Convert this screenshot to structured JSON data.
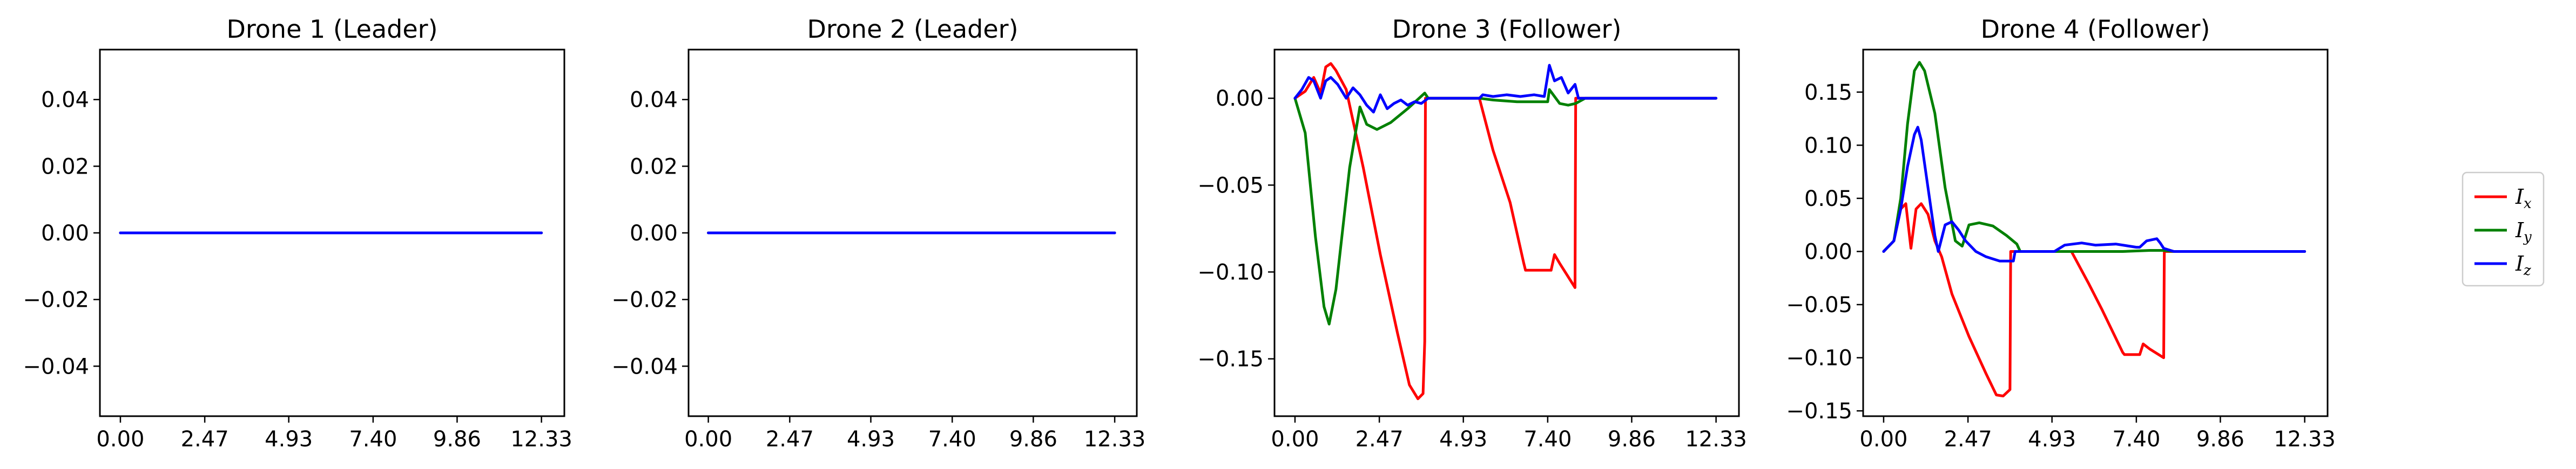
{
  "chart_data": [
    {
      "type": "line",
      "title": "Drone 1 (Leader)",
      "xlim": [
        -0.6,
        13.0
      ],
      "ylim": [
        -0.055,
        0.055
      ],
      "xticks": [
        "0.00",
        "2.47",
        "4.93",
        "7.40",
        "9.86",
        "12.33"
      ],
      "xtick_values": [
        0.0,
        2.47,
        4.93,
        7.4,
        9.86,
        12.33
      ],
      "yticks": [
        "−0.04",
        "−0.02",
        "0.00",
        "0.02",
        "0.04"
      ],
      "ytick_values": [
        -0.04,
        -0.02,
        0.0,
        0.02,
        0.04
      ],
      "series": [
        {
          "name": "I_x",
          "color": "#ff0000",
          "x": [
            0.0,
            12.33
          ],
          "y": [
            0.0,
            0.0
          ]
        },
        {
          "name": "I_y",
          "color": "#008000",
          "x": [
            0.0,
            12.33
          ],
          "y": [
            0.0,
            0.0
          ]
        },
        {
          "name": "I_z",
          "color": "#0000ff",
          "x": [
            0.0,
            12.33
          ],
          "y": [
            0.0,
            0.0
          ]
        }
      ]
    },
    {
      "type": "line",
      "title": "Drone 2 (Leader)",
      "xlim": [
        -0.6,
        13.0
      ],
      "ylim": [
        -0.055,
        0.055
      ],
      "xticks": [
        "0.00",
        "2.47",
        "4.93",
        "7.40",
        "9.86",
        "12.33"
      ],
      "xtick_values": [
        0.0,
        2.47,
        4.93,
        7.4,
        9.86,
        12.33
      ],
      "yticks": [
        "−0.04",
        "−0.02",
        "0.00",
        "0.02",
        "0.04"
      ],
      "ytick_values": [
        -0.04,
        -0.02,
        0.0,
        0.02,
        0.04
      ],
      "series": [
        {
          "name": "I_x",
          "color": "#ff0000",
          "x": [
            0.0,
            12.33
          ],
          "y": [
            0.0,
            0.0
          ]
        },
        {
          "name": "I_y",
          "color": "#008000",
          "x": [
            0.0,
            12.33
          ],
          "y": [
            0.0,
            0.0
          ]
        },
        {
          "name": "I_z",
          "color": "#0000ff",
          "x": [
            0.0,
            12.33
          ],
          "y": [
            0.0,
            0.0
          ]
        }
      ]
    },
    {
      "type": "line",
      "title": "Drone 3 (Follower)",
      "xlim": [
        -0.6,
        13.0
      ],
      "ylim": [
        -0.183,
        0.028
      ],
      "xticks": [
        "0.00",
        "2.47",
        "4.93",
        "7.40",
        "9.86",
        "12.33"
      ],
      "xtick_values": [
        0.0,
        2.47,
        4.93,
        7.4,
        9.86,
        12.33
      ],
      "yticks": [
        "0.00",
        "−0.05",
        "−0.10",
        "−0.15"
      ],
      "ytick_values": [
        0.0,
        -0.05,
        -0.1,
        -0.15
      ],
      "series": [
        {
          "name": "I_x",
          "color": "#ff0000",
          "x": [
            0.0,
            0.3,
            0.55,
            0.75,
            0.9,
            1.05,
            1.2,
            1.5,
            2.0,
            2.5,
            3.0,
            3.35,
            3.6,
            3.75,
            3.8,
            3.82,
            3.9,
            4.2,
            4.9,
            5.4,
            5.8,
            6.3,
            6.7,
            6.75,
            7.1,
            7.5,
            7.6,
            7.75,
            8.2,
            8.22,
            8.5,
            12.33
          ],
          "y": [
            0.0,
            0.004,
            0.012,
            0.003,
            0.018,
            0.02,
            0.016,
            0.005,
            -0.04,
            -0.09,
            -0.135,
            -0.165,
            -0.173,
            -0.17,
            -0.14,
            0.0,
            0.0,
            0.0,
            0.0,
            0.0,
            -0.03,
            -0.06,
            -0.095,
            -0.099,
            -0.099,
            -0.099,
            -0.09,
            -0.095,
            -0.109,
            0.0,
            0.0,
            0.0
          ]
        },
        {
          "name": "I_y",
          "color": "#008000",
          "x": [
            0.0,
            0.3,
            0.6,
            0.85,
            1.0,
            1.2,
            1.6,
            1.9,
            2.1,
            2.4,
            2.8,
            3.3,
            3.8,
            3.9,
            4.6,
            5.0,
            5.4,
            5.8,
            6.5,
            7.0,
            7.4,
            7.45,
            7.75,
            8.0,
            8.22,
            8.5,
            12.33
          ],
          "y": [
            0.0,
            -0.02,
            -0.08,
            -0.12,
            -0.13,
            -0.11,
            -0.04,
            -0.005,
            -0.015,
            -0.018,
            -0.014,
            -0.006,
            0.003,
            0.0,
            0.0,
            0.0,
            0.0,
            -0.001,
            -0.002,
            -0.002,
            -0.002,
            0.005,
            -0.003,
            -0.004,
            -0.003,
            0.0,
            0.0
          ]
        },
        {
          "name": "I_z",
          "color": "#0000ff",
          "x": [
            0.0,
            0.2,
            0.4,
            0.55,
            0.75,
            0.9,
            1.05,
            1.25,
            1.5,
            1.7,
            1.9,
            2.1,
            2.3,
            2.5,
            2.7,
            2.9,
            3.1,
            3.3,
            3.5,
            3.7,
            3.9,
            4.4,
            4.9,
            5.4,
            5.5,
            5.8,
            6.2,
            6.6,
            7.0,
            7.3,
            7.45,
            7.6,
            7.8,
            8.0,
            8.2,
            8.3,
            8.6,
            12.33
          ],
          "y": [
            0.0,
            0.005,
            0.012,
            0.01,
            0.0,
            0.01,
            0.012,
            0.008,
            0.0,
            0.006,
            0.002,
            -0.004,
            -0.008,
            0.002,
            -0.006,
            -0.003,
            -0.001,
            -0.004,
            -0.002,
            -0.003,
            0.0,
            0.0,
            0.0,
            0.0,
            0.002,
            0.001,
            0.002,
            0.001,
            0.002,
            0.001,
            0.019,
            0.01,
            0.012,
            0.003,
            0.008,
            0.0,
            0.0,
            0.0
          ]
        }
      ]
    },
    {
      "type": "line",
      "title": "Drone 4 (Follower)",
      "xlim": [
        -0.6,
        13.0
      ],
      "ylim": [
        -0.155,
        0.19
      ],
      "xticks": [
        "0.00",
        "2.47",
        "4.93",
        "7.40",
        "9.86",
        "12.33"
      ],
      "xtick_values": [
        0.0,
        2.47,
        4.93,
        7.4,
        9.86,
        12.33
      ],
      "yticks": [
        "0.15",
        "0.10",
        "0.05",
        "0.00",
        "−0.05",
        "−0.10",
        "−0.15"
      ],
      "ytick_values": [
        0.15,
        0.1,
        0.05,
        0.0,
        -0.05,
        -0.1,
        -0.15
      ],
      "series": [
        {
          "name": "I_x",
          "color": "#ff0000",
          "x": [
            0.0,
            0.3,
            0.5,
            0.65,
            0.8,
            0.95,
            1.1,
            1.3,
            1.5,
            1.7,
            2.0,
            2.5,
            3.0,
            3.3,
            3.5,
            3.7,
            3.72,
            4.0,
            5.2,
            5.5,
            6.0,
            6.4,
            7.0,
            7.05,
            7.3,
            7.5,
            7.6,
            7.8,
            8.2,
            8.22,
            8.5,
            12.33
          ],
          "y": [
            0.0,
            0.01,
            0.04,
            0.045,
            0.003,
            0.04,
            0.045,
            0.035,
            0.01,
            -0.005,
            -0.04,
            -0.08,
            -0.115,
            -0.135,
            -0.136,
            -0.13,
            0.0,
            0.0,
            0.0,
            0.0,
            -0.03,
            -0.055,
            -0.095,
            -0.097,
            -0.097,
            -0.097,
            -0.087,
            -0.092,
            -0.1,
            0.0,
            0.0,
            0.0
          ]
        },
        {
          "name": "I_y",
          "color": "#008000",
          "x": [
            0.0,
            0.3,
            0.5,
            0.7,
            0.9,
            1.05,
            1.2,
            1.5,
            1.8,
            2.1,
            2.3,
            2.5,
            2.8,
            3.2,
            3.6,
            3.9,
            4.0,
            5.0,
            6.0,
            7.0,
            7.8,
            8.2,
            8.5,
            12.33
          ],
          "y": [
            0.0,
            0.01,
            0.05,
            0.12,
            0.17,
            0.178,
            0.17,
            0.13,
            0.06,
            0.01,
            0.005,
            0.025,
            0.027,
            0.024,
            0.015,
            0.007,
            0.0,
            0.0,
            0.0,
            0.0,
            0.001,
            0.001,
            0.0,
            0.0
          ]
        },
        {
          "name": "I_z",
          "color": "#0000ff",
          "x": [
            0.0,
            0.3,
            0.5,
            0.7,
            0.9,
            1.0,
            1.1,
            1.3,
            1.5,
            1.6,
            1.8,
            2.0,
            2.2,
            2.4,
            2.7,
            3.0,
            3.4,
            3.8,
            3.85,
            5.0,
            5.3,
            5.8,
            6.2,
            6.8,
            7.4,
            7.5,
            7.7,
            8.0,
            8.1,
            8.2,
            8.5,
            12.33
          ],
          "y": [
            0.0,
            0.01,
            0.04,
            0.08,
            0.11,
            0.117,
            0.105,
            0.06,
            0.015,
            0.0,
            0.025,
            0.028,
            0.02,
            0.01,
            0.0,
            -0.005,
            -0.009,
            -0.009,
            0.0,
            0.0,
            0.006,
            0.008,
            0.006,
            0.007,
            0.004,
            0.004,
            0.01,
            0.012,
            0.008,
            0.003,
            0.0,
            0.0
          ]
        }
      ]
    }
  ],
  "legend": {
    "placement": "right",
    "entries": [
      {
        "base": "I",
        "sub": "x",
        "color": "#ff0000"
      },
      {
        "base": "I",
        "sub": "y",
        "color": "#008000"
      },
      {
        "base": "I",
        "sub": "z",
        "color": "#0000ff"
      }
    ]
  }
}
